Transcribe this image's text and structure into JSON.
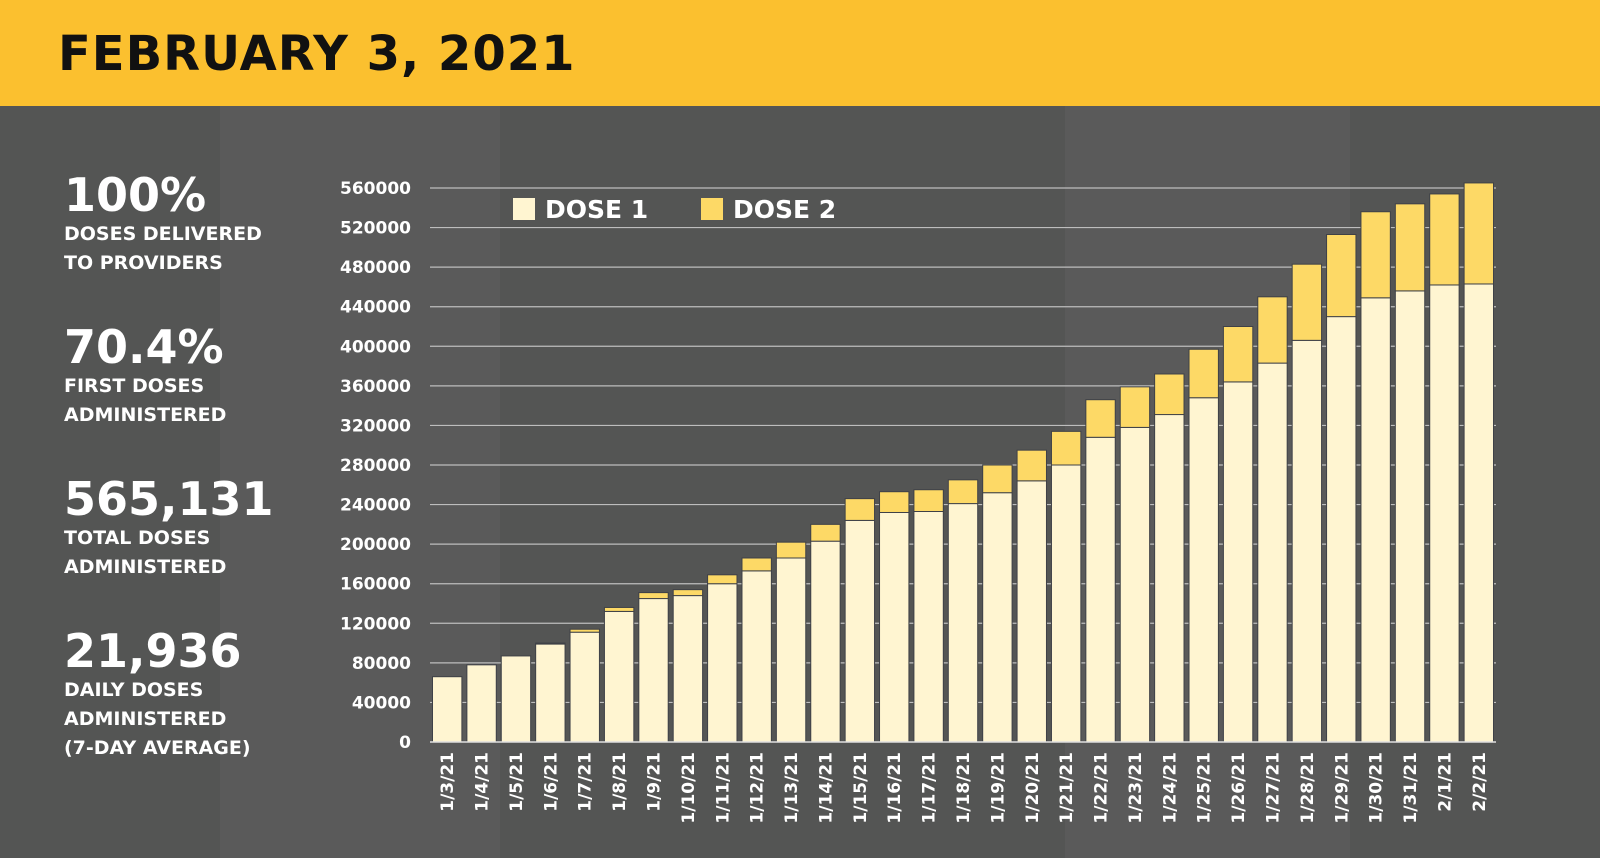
{
  "header": {
    "title": "FEBRUARY 3, 2021"
  },
  "stats": [
    {
      "value": "100%",
      "label": "DOSES DELIVERED\nTO PROVIDERS"
    },
    {
      "value": "70.4%",
      "label": "FIRST DOSES\nADMINISTERED"
    },
    {
      "value": "565,131",
      "label": "TOTAL DOSES\nADMINISTERED"
    },
    {
      "value": "21,936",
      "label": "DAILY DOSES\nADMINISTERED\n(7-DAY AVERAGE)"
    }
  ],
  "colors": {
    "header": "#fbc02f",
    "dose1": "#fff5d1",
    "dose2": "#fdd966",
    "background": "#545554"
  },
  "chart_data": {
    "type": "bar",
    "stacked": true,
    "title": "",
    "xlabel": "",
    "ylabel": "",
    "ylim": [
      0,
      560000
    ],
    "yticks": [
      0,
      40000,
      80000,
      120000,
      160000,
      200000,
      240000,
      280000,
      320000,
      360000,
      400000,
      440000,
      480000,
      520000,
      560000
    ],
    "grid": true,
    "legend": "top-left",
    "categories": [
      "1/3/21",
      "1/4/21",
      "1/5/21",
      "1/6/21",
      "1/7/21",
      "1/8/21",
      "1/9/21",
      "1/10/21",
      "1/11/21",
      "1/12/21",
      "1/13/21",
      "1/14/21",
      "1/15/21",
      "1/16/21",
      "1/17/21",
      "1/18/21",
      "1/19/21",
      "1/20/21",
      "1/21/21",
      "1/22/21",
      "1/23/21",
      "1/24/21",
      "1/25/21",
      "1/26/21",
      "1/27/21",
      "1/28/21",
      "1/29/21",
      "1/30/21",
      "1/31/21",
      "2/1/21",
      "2/2/21"
    ],
    "series": [
      {
        "name": "DOSE 1",
        "values": [
          66000,
          78000,
          87000,
          99000,
          111000,
          132000,
          145000,
          148000,
          160000,
          173000,
          186000,
          203000,
          224000,
          232000,
          233000,
          241000,
          252000,
          264000,
          280000,
          308000,
          318000,
          331000,
          348000,
          364000,
          383000,
          406000,
          430000,
          449000,
          456000,
          462000,
          463000
        ]
      },
      {
        "name": "DOSE 2",
        "values": [
          0,
          0,
          0,
          1000,
          3000,
          4000,
          6000,
          6000,
          9000,
          13000,
          16000,
          17000,
          22000,
          21000,
          22000,
          24000,
          28000,
          31000,
          34000,
          38000,
          41000,
          41000,
          49000,
          56000,
          67000,
          77000,
          83000,
          87000,
          88000,
          92000,
          102131
        ]
      }
    ]
  }
}
